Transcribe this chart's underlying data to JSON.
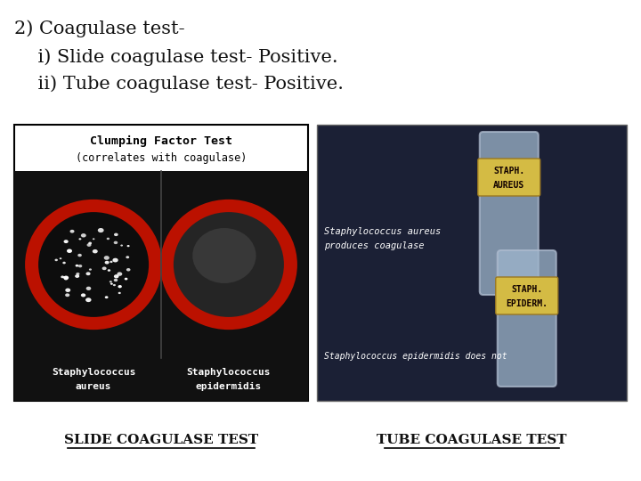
{
  "bg_color": "#ffffff",
  "title_line1": "2) Coagulase test-",
  "title_line2": "    i) Slide coagulase test- Positive.",
  "title_line3": "    ii) Tube coagulase test- Positive.",
  "label_left": "SLIDE COAGULASE TEST",
  "label_right": "TUBE COAGULASE TEST",
  "text_color": "#111111",
  "font_size_title": 15,
  "font_size_label": 11,
  "slide_header1": "Clumping Factor Test",
  "slide_header2": "(correlates with coagulase)",
  "slide_footer_left1": "Staphylococcus",
  "slide_footer_left2": "aureus",
  "slide_footer_right1": "Staphylococcus",
  "slide_footer_right2": "epidermidis",
  "tube_label1_line1": "STAPH.",
  "tube_label1_line2": "AUREUS",
  "tube_label2_line1": "STAPH.",
  "tube_label2_line2": "EPIDERM.",
  "tube_text1": "Staphylococcus aureus",
  "tube_text2": "produces coagulase",
  "tube_text3": "Staphylococcus epidermidis does not"
}
